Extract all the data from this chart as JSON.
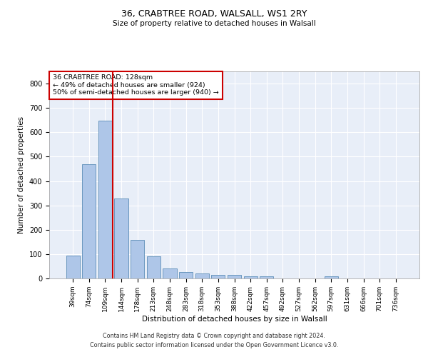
{
  "title1": "36, CRABTREE ROAD, WALSALL, WS1 2RY",
  "title2": "Size of property relative to detached houses in Walsall",
  "xlabel": "Distribution of detached houses by size in Walsall",
  "ylabel": "Number of detached properties",
  "footer1": "Contains HM Land Registry data © Crown copyright and database right 2024.",
  "footer2": "Contains public sector information licensed under the Open Government Licence v3.0.",
  "annotation_line1": "36 CRABTREE ROAD: 128sqm",
  "annotation_line2": "← 49% of detached houses are smaller (924)",
  "annotation_line3": "50% of semi-detached houses are larger (940) →",
  "bar_labels": [
    "39sqm",
    "74sqm",
    "109sqm",
    "144sqm",
    "178sqm",
    "213sqm",
    "248sqm",
    "283sqm",
    "318sqm",
    "353sqm",
    "388sqm",
    "422sqm",
    "457sqm",
    "492sqm",
    "527sqm",
    "562sqm",
    "597sqm",
    "631sqm",
    "666sqm",
    "701sqm",
    "736sqm"
  ],
  "bar_values": [
    95,
    470,
    648,
    328,
    158,
    92,
    40,
    25,
    20,
    15,
    15,
    10,
    10,
    0,
    0,
    0,
    8,
    0,
    0,
    0,
    0
  ],
  "bar_color": "#aec6e8",
  "bar_edge_color": "#5b8db8",
  "vline_color": "#cc0000",
  "vline_x": 2.47,
  "annotation_box_color": "#cc0000",
  "background_color": "#e8eef8",
  "ylim": [
    0,
    850
  ],
  "yticks": [
    0,
    100,
    200,
    300,
    400,
    500,
    600,
    700,
    800
  ]
}
